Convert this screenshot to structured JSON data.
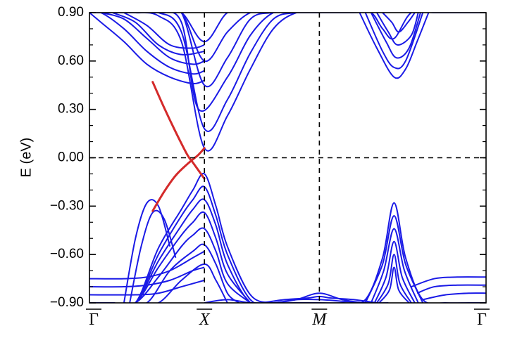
{
  "chart_data": {
    "type": "line",
    "title": "",
    "xlabel": "",
    "ylabel": "E (eV)",
    "ylim": [
      -0.9,
      0.9
    ],
    "yticks": [
      "0.90",
      "0.60",
      "0.30",
      "0.00",
      "−0.30",
      "−0.60",
      "−0.90"
    ],
    "ytick_values": [
      0.9,
      0.6,
      0.3,
      0.0,
      -0.3,
      -0.6,
      -0.9
    ],
    "kpoints": [
      {
        "label": "Γ",
        "pos": 0.0
      },
      {
        "label": "X",
        "pos": 1.0
      },
      {
        "label": "M",
        "pos": 2.0
      },
      {
        "label": "Γ",
        "pos": 3.45
      }
    ],
    "xlim": [
      0.0,
      3.45
    ],
    "guides": {
      "fermi_level": 0.0,
      "vertical_dashed_at": [
        1.0,
        2.0
      ]
    },
    "colors": {
      "bulk_bands": "#1a1ae6",
      "surface_state": "#d42a2a",
      "axes": "#000000"
    },
    "surface_state": {
      "x": [
        0.55,
        0.65,
        0.75,
        0.85,
        0.9,
        0.95,
        1.0
      ],
      "y1": [
        0.47,
        0.31,
        0.16,
        0.02,
        -0.03,
        -0.08,
        -0.13
      ],
      "y2": [
        -0.33,
        -0.21,
        -0.11,
        -0.04,
        -0.01,
        0.02,
        0.06
      ]
    },
    "bulk_bands": [
      {
        "x": [
          0.0,
          0.2,
          0.4,
          0.6,
          0.8,
          1.0,
          1.2,
          1.4,
          1.6,
          1.8,
          2.0
        ],
        "y": [
          0.9,
          0.9,
          0.9,
          0.88,
          0.72,
          0.06,
          0.26,
          0.55,
          0.8,
          0.9,
          0.9
        ]
      },
      {
        "x": [
          0.0,
          0.2,
          0.4,
          0.6,
          0.8,
          1.0,
          1.2,
          1.4,
          1.6,
          1.8,
          2.0
        ],
        "y": [
          0.9,
          0.9,
          0.9,
          0.9,
          0.78,
          0.18,
          0.36,
          0.65,
          0.86,
          0.9,
          0.9
        ]
      },
      {
        "x": [
          0.0,
          0.2,
          0.4,
          0.6,
          0.8,
          0.95,
          1.2,
          1.4,
          1.6,
          1.8,
          2.0
        ],
        "y": [
          0.9,
          0.9,
          0.9,
          0.9,
          0.84,
          0.3,
          0.5,
          0.76,
          0.9,
          0.9,
          0.9
        ]
      },
      {
        "x": [
          0.0,
          0.2,
          0.4,
          0.6,
          0.8,
          1.0,
          1.2,
          1.4,
          1.6,
          1.8,
          2.0
        ],
        "y": [
          0.9,
          0.9,
          0.9,
          0.9,
          0.9,
          0.45,
          0.62,
          0.86,
          0.9,
          0.9,
          0.9
        ]
      },
      {
        "x": [
          0.0,
          0.2,
          0.4,
          0.6,
          0.8,
          1.0,
          1.2,
          1.4,
          1.6
        ],
        "y": [
          0.9,
          0.9,
          0.9,
          0.9,
          0.9,
          0.6,
          0.78,
          0.9,
          0.9
        ]
      },
      {
        "x": [
          0.2,
          0.4,
          0.6,
          0.8,
          1.0,
          1.2,
          1.4
        ],
        "y": [
          0.9,
          0.9,
          0.9,
          0.9,
          0.72,
          0.9,
          0.9
        ]
      },
      {
        "x": [
          0.0,
          0.1,
          0.3,
          0.5,
          0.7,
          0.9,
          1.0
        ],
        "y": [
          0.9,
          0.84,
          0.72,
          0.58,
          0.5,
          0.46,
          0.48
        ]
      },
      {
        "x": [
          0.0,
          0.1,
          0.3,
          0.5,
          0.7,
          0.9,
          1.0
        ],
        "y": [
          0.9,
          0.9,
          0.8,
          0.66,
          0.56,
          0.52,
          0.54
        ]
      },
      {
        "x": [
          0.1,
          0.3,
          0.5,
          0.7,
          0.9,
          1.0
        ],
        "y": [
          0.9,
          0.86,
          0.74,
          0.62,
          0.58,
          0.6
        ]
      },
      {
        "x": [
          0.2,
          0.4,
          0.6,
          0.8,
          1.0
        ],
        "y": [
          0.9,
          0.84,
          0.7,
          0.64,
          0.66
        ]
      },
      {
        "x": [
          0.3,
          0.5,
          0.7,
          0.9,
          1.0
        ],
        "y": [
          0.9,
          0.82,
          0.7,
          0.68,
          0.7
        ]
      },
      {
        "x": [
          0.0,
          0.2,
          0.4,
          0.6,
          0.8,
          0.9,
          1.0,
          1.1,
          1.2,
          1.4,
          1.6,
          1.8,
          2.0
        ],
        "y": [
          -0.9,
          -0.9,
          -0.9,
          -0.56,
          -0.32,
          -0.2,
          -0.1,
          -0.3,
          -0.55,
          -0.85,
          -0.9,
          -0.9,
          -0.9
        ]
      },
      {
        "x": [
          0.0,
          0.2,
          0.4,
          0.6,
          0.8,
          0.9,
          1.0,
          1.1,
          1.2,
          1.4,
          1.6,
          2.0
        ],
        "y": [
          -0.9,
          -0.9,
          -0.9,
          -0.6,
          -0.36,
          -0.26,
          -0.18,
          -0.36,
          -0.6,
          -0.88,
          -0.9,
          -0.9
        ]
      },
      {
        "x": [
          0.0,
          0.2,
          0.4,
          0.6,
          0.8,
          0.9,
          1.0,
          1.1,
          1.2,
          1.4,
          1.6
        ],
        "y": [
          -0.9,
          -0.9,
          -0.9,
          -0.64,
          -0.42,
          -0.32,
          -0.26,
          -0.42,
          -0.66,
          -0.9,
          -0.9
        ]
      },
      {
        "x": [
          0.0,
          0.2,
          0.4,
          0.6,
          0.8,
          0.9,
          1.0,
          1.1,
          1.2,
          1.4
        ],
        "y": [
          -0.9,
          -0.9,
          -0.9,
          -0.68,
          -0.48,
          -0.4,
          -0.34,
          -0.5,
          -0.72,
          -0.9
        ]
      },
      {
        "x": [
          0.2,
          0.4,
          0.6,
          0.8,
          0.9,
          1.0,
          1.1,
          1.2,
          1.4
        ],
        "y": [
          -0.9,
          -0.9,
          -0.74,
          -0.55,
          -0.48,
          -0.44,
          -0.58,
          -0.78,
          -0.9
        ]
      },
      {
        "x": [
          0.3,
          0.5,
          0.7,
          0.9,
          1.0,
          1.1,
          1.2,
          1.3
        ],
        "y": [
          -0.9,
          -0.9,
          -0.7,
          -0.58,
          -0.54,
          -0.66,
          -0.84,
          -0.9
        ]
      },
      {
        "x": [
          0.4,
          0.6,
          0.8,
          1.0,
          1.1,
          1.2
        ],
        "y": [
          -0.9,
          -0.9,
          -0.76,
          -0.66,
          -0.76,
          -0.9
        ]
      },
      {
        "x": [
          0.3,
          0.4,
          0.5,
          0.6,
          0.7
        ],
        "y": [
          -0.9,
          -0.5,
          -0.28,
          -0.3,
          -0.55
        ]
      },
      {
        "x": [
          0.35,
          0.45,
          0.55,
          0.65,
          0.75
        ],
        "y": [
          -0.9,
          -0.55,
          -0.34,
          -0.38,
          -0.62
        ]
      },
      {
        "x": [
          0.0,
          0.3,
          0.5,
          0.7,
          0.9,
          1.0
        ],
        "y": [
          -0.75,
          -0.75,
          -0.74,
          -0.7,
          -0.62,
          -0.58
        ]
      },
      {
        "x": [
          0.0,
          0.3,
          0.5,
          0.7,
          0.9,
          1.0
        ],
        "y": [
          -0.8,
          -0.8,
          -0.79,
          -0.76,
          -0.7,
          -0.68
        ]
      },
      {
        "x": [
          0.0,
          0.4,
          0.6,
          0.8,
          1.0
        ],
        "y": [
          -0.85,
          -0.85,
          -0.84,
          -0.8,
          -0.76
        ]
      },
      {
        "x": [
          1.0,
          1.2,
          1.4,
          1.6,
          1.8,
          2.0,
          2.2,
          2.4,
          2.6
        ],
        "y": [
          -0.9,
          -0.88,
          -0.9,
          -0.9,
          -0.88,
          -0.84,
          -0.88,
          -0.9,
          -0.9
        ]
      },
      {
        "x": [
          1.5,
          1.7,
          1.9,
          2.0,
          2.1,
          2.3,
          2.5
        ],
        "y": [
          -0.9,
          -0.88,
          -0.87,
          -0.86,
          -0.87,
          -0.88,
          -0.9
        ]
      },
      {
        "x": [
          1.4,
          1.6,
          1.8,
          2.0,
          2.2,
          2.4
        ],
        "y": [
          -0.9,
          -0.9,
          -0.88,
          -0.88,
          -0.89,
          -0.9
        ]
      },
      {
        "x": [
          2.0,
          2.3,
          2.45,
          2.55,
          2.65,
          2.8,
          3.0,
          3.2,
          3.45
        ],
        "y": [
          0.9,
          0.9,
          0.9,
          0.8,
          0.74,
          0.9,
          0.9,
          0.9,
          0.9
        ]
      },
      {
        "x": [
          2.35,
          2.5,
          2.65,
          2.75,
          2.85,
          2.95
        ],
        "y": [
          0.9,
          0.68,
          0.5,
          0.55,
          0.72,
          0.9
        ]
      },
      {
        "x": [
          2.4,
          2.55,
          2.65,
          2.75,
          2.9
        ],
        "y": [
          0.9,
          0.66,
          0.56,
          0.6,
          0.9
        ]
      },
      {
        "x": [
          2.45,
          2.58,
          2.67,
          2.78,
          2.88
        ],
        "y": [
          0.9,
          0.72,
          0.62,
          0.68,
          0.9
        ]
      },
      {
        "x": [
          2.5,
          2.6,
          2.68,
          2.8,
          2.86
        ],
        "y": [
          0.9,
          0.78,
          0.7,
          0.76,
          0.9
        ]
      },
      {
        "x": [
          2.55,
          2.63,
          2.69,
          2.77,
          2.83
        ],
        "y": [
          0.9,
          0.84,
          0.78,
          0.84,
          0.9
        ]
      },
      {
        "x": [
          2.0,
          2.2,
          2.4,
          2.55,
          2.65,
          2.75,
          2.9,
          3.1,
          3.3,
          3.45
        ],
        "y": [
          -0.9,
          -0.9,
          -0.88,
          -0.62,
          -0.28,
          -0.62,
          -0.88,
          -0.9,
          -0.9,
          -0.9
        ]
      },
      {
        "x": [
          2.4,
          2.55,
          2.65,
          2.75,
          2.9
        ],
        "y": [
          -0.9,
          -0.66,
          -0.36,
          -0.66,
          -0.9
        ]
      },
      {
        "x": [
          2.45,
          2.56,
          2.65,
          2.74,
          2.86
        ],
        "y": [
          -0.9,
          -0.7,
          -0.44,
          -0.7,
          -0.9
        ]
      },
      {
        "x": [
          2.48,
          2.58,
          2.65,
          2.72,
          2.83
        ],
        "y": [
          -0.9,
          -0.74,
          -0.52,
          -0.74,
          -0.9
        ]
      },
      {
        "x": [
          2.5,
          2.6,
          2.65,
          2.7,
          2.8
        ],
        "y": [
          -0.9,
          -0.78,
          -0.6,
          -0.78,
          -0.9
        ]
      },
      {
        "x": [
          2.52,
          2.61,
          2.65,
          2.69,
          2.78
        ],
        "y": [
          -0.9,
          -0.82,
          -0.68,
          -0.82,
          -0.9
        ]
      },
      {
        "x": [
          2.8,
          3.0,
          3.2,
          3.45
        ],
        "y": [
          -0.8,
          -0.75,
          -0.74,
          -0.74
        ]
      },
      {
        "x": [
          2.85,
          3.0,
          3.2,
          3.45
        ],
        "y": [
          -0.84,
          -0.8,
          -0.79,
          -0.79
        ]
      },
      {
        "x": [
          2.9,
          3.1,
          3.3,
          3.45
        ],
        "y": [
          -0.88,
          -0.85,
          -0.84,
          -0.84
        ]
      }
    ]
  }
}
